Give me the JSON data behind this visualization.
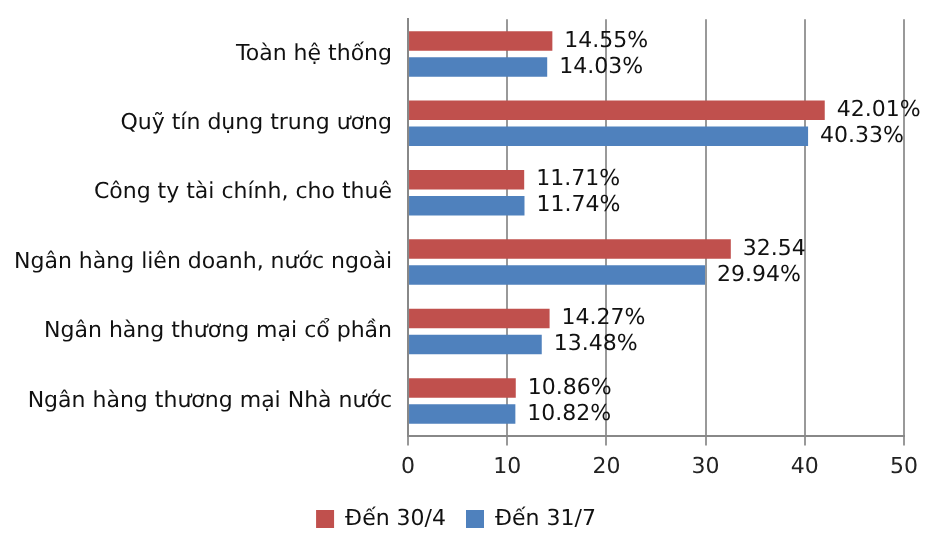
{
  "chart_data": {
    "type": "bar",
    "orientation": "horizontal",
    "categories": [
      "Toàn hệ thống",
      "Quỹ tín dụng trung ương",
      "Công ty tài chính, cho thuê",
      "Ngân hàng liên doanh, nước ngoài",
      "Ngân hàng thương mại cổ phần",
      "Ngân hàng thương mại Nhà nước"
    ],
    "series": [
      {
        "name": "Đến 30/4",
        "color": "#c0504d",
        "values": [
          14.55,
          42.01,
          11.71,
          32.54,
          14.27,
          10.86
        ],
        "value_labels": [
          "14.55%",
          "42.01%",
          "11.71%",
          "32.54",
          "14.27%",
          "10.86%"
        ]
      },
      {
        "name": "Đến 31/7",
        "color": "#4f81bd",
        "values": [
          14.03,
          40.33,
          11.74,
          29.94,
          13.48,
          10.82
        ],
        "value_labels": [
          "14.03%",
          "40.33%",
          "11.74%",
          "29.94%",
          "13.48%",
          "10.82%"
        ]
      }
    ],
    "xlim": [
      0,
      50
    ],
    "xticks": [
      0,
      10,
      20,
      30,
      40,
      50
    ],
    "grid": "x",
    "legend": "bottom"
  }
}
